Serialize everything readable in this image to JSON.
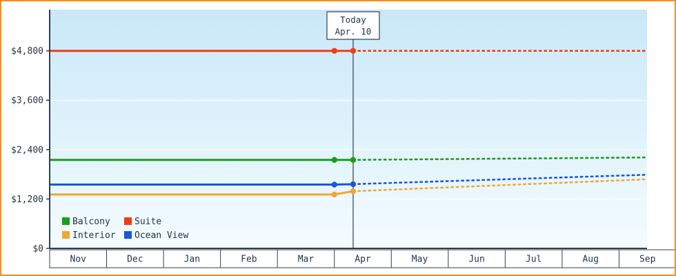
{
  "window": {
    "border_color": "#ff8c1a",
    "background": "#ffffff"
  },
  "chart_data": {
    "type": "line",
    "title": "",
    "x_categories": [
      "Nov",
      "Dec",
      "Jan",
      "Feb",
      "Mar",
      "Apr",
      "May",
      "Jun",
      "Jul",
      "Aug",
      "Sep"
    ],
    "y_ticks": [
      {
        "value": 0,
        "label": "$0"
      },
      {
        "value": 1200,
        "label": "$1,200"
      },
      {
        "value": 2400,
        "label": "$2,400"
      },
      {
        "value": 3600,
        "label": "$3,600"
      },
      {
        "value": 4800,
        "label": "$4,800"
      }
    ],
    "ylim": [
      0,
      5800
    ],
    "x_unit": "month-cell-index (Nov=0)",
    "history_style": "solid",
    "forecast_style": "dotted",
    "today": {
      "label": "Today",
      "date": "Apr. 10",
      "month_index": 5.33
    },
    "series": [
      {
        "name": "Balcony",
        "color": "#17a017",
        "history": [
          [
            0,
            2150
          ],
          [
            5.0,
            2150
          ],
          [
            5.33,
            2150
          ]
        ],
        "markers": [
          [
            5.0,
            2150
          ],
          [
            5.33,
            2150
          ]
        ],
        "forecast": [
          [
            5.33,
            2150
          ],
          [
            10.5,
            2210
          ]
        ]
      },
      {
        "name": "Suite",
        "color": "#f33b14",
        "history": [
          [
            0,
            4800
          ],
          [
            5.0,
            4800
          ],
          [
            5.33,
            4800
          ]
        ],
        "markers": [
          [
            5.0,
            4800
          ],
          [
            5.33,
            4800
          ]
        ],
        "forecast": [
          [
            5.33,
            4800
          ],
          [
            10.5,
            4800
          ]
        ]
      },
      {
        "name": "Interior",
        "color": "#f0a830",
        "history": [
          [
            0,
            1310
          ],
          [
            5.0,
            1310
          ],
          [
            5.33,
            1390
          ]
        ],
        "markers": [
          [
            5.0,
            1310
          ],
          [
            5.33,
            1390
          ]
        ],
        "forecast": [
          [
            5.33,
            1390
          ],
          [
            10.5,
            1680
          ]
        ]
      },
      {
        "name": "Ocean View",
        "color": "#1a56db",
        "history": [
          [
            0,
            1550
          ],
          [
            5.0,
            1550
          ],
          [
            5.33,
            1560
          ]
        ],
        "markers": [
          [
            5.0,
            1550
          ],
          [
            5.33,
            1560
          ]
        ],
        "forecast": [
          [
            5.33,
            1560
          ],
          [
            10.5,
            1790
          ]
        ]
      }
    ],
    "legend": {
      "entries": [
        "Balcony",
        "Suite",
        "Interior",
        "Ocean View"
      ],
      "position": "bottom-left",
      "columns": 2
    },
    "colors": {
      "axis": "#2c3e50",
      "text": "#1f3347",
      "grid": "#ffffff",
      "plot_bg_top": "#c9e8f8",
      "plot_bg_bottom": "#f4fcff",
      "label_box_bg": "#ffffff"
    }
  }
}
